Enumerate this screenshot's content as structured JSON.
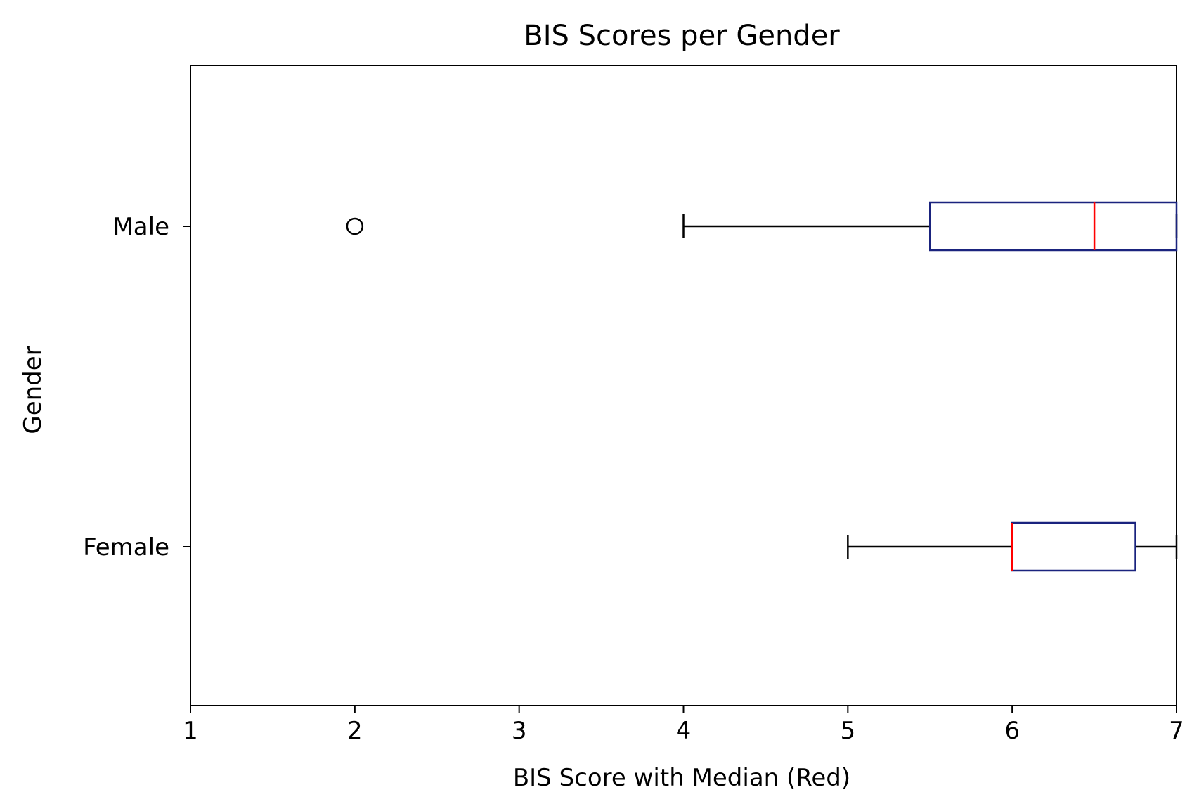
{
  "chart_data": {
    "type": "boxplot",
    "orientation": "horizontal",
    "title": "BIS Scores per Gender",
    "xlabel": "BIS Score with Median (Red)",
    "ylabel": "Gender",
    "xlim": [
      1,
      7
    ],
    "xticks": [
      "1",
      "2",
      "3",
      "4",
      "5",
      "6",
      "7"
    ],
    "categories": [
      "Male",
      "Female"
    ],
    "boxes": [
      {
        "category": "Male",
        "whisker_low": 4,
        "q1": 5.5,
        "median": 6.5,
        "q3": 7,
        "whisker_high": 7,
        "outliers": [
          2
        ]
      },
      {
        "category": "Female",
        "whisker_low": 5,
        "q1": 6,
        "median": 6,
        "q3": 6.75,
        "whisker_high": 7,
        "outliers": []
      }
    ],
    "grid": false,
    "colors": {
      "box": "#1a237e",
      "median": "#ff0000",
      "whisker": "#000000",
      "outlier": "#000000",
      "axes": "#000000",
      "background": "#ffffff"
    }
  }
}
